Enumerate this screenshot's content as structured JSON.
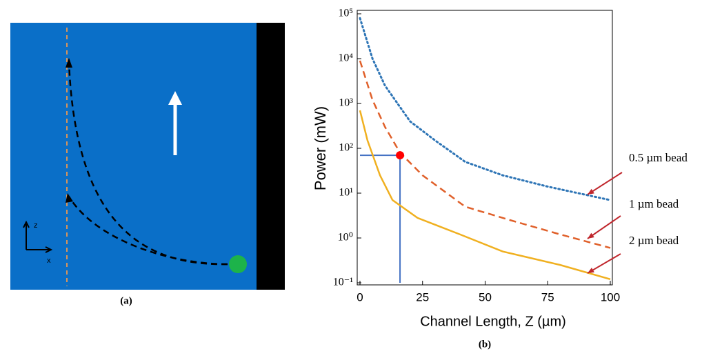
{
  "panel_a": {
    "label": "(a)",
    "axis_z": "z",
    "axis_x": "x"
  },
  "chart_data": {
    "type": "line",
    "panel_label": "(b)",
    "ylabel": "Power (mW)",
    "xlabel": "Channel Length,  Z (µm)",
    "xlim": [
      0,
      100
    ],
    "xticks": [
      0,
      25,
      50,
      75,
      100
    ],
    "ylim": [
      0.1,
      100000
    ],
    "log_y": true,
    "yticks": [
      {
        "value": 100000,
        "label": "10⁵"
      },
      {
        "value": 10000,
        "label": "10⁴"
      },
      {
        "value": 1000,
        "label": "10³"
      },
      {
        "value": 100,
        "label": "10²"
      },
      {
        "value": 10,
        "label": "10¹"
      },
      {
        "value": 1,
        "label": "10⁰"
      },
      {
        "value": 0.1,
        "label": "10⁻¹"
      }
    ],
    "series": [
      {
        "name": "0.5 µm bead",
        "color": "#2e75b6",
        "style": "dotted",
        "x": [
          0,
          5,
          10,
          20,
          30,
          42,
          57,
          75,
          100
        ],
        "values": [
          80000,
          10000,
          2500,
          400,
          150,
          50,
          25,
          14,
          7
        ]
      },
      {
        "name": "1 µm bead",
        "color": "#e0602a",
        "style": "dashed",
        "x": [
          0,
          5,
          10,
          16,
          25,
          42,
          60,
          80,
          100
        ],
        "values": [
          9000,
          1200,
          300,
          80,
          25,
          5,
          2.5,
          1.2,
          0.6
        ]
      },
      {
        "name": "2 µm bead",
        "color": "#f0b020",
        "style": "solid",
        "x": [
          0,
          3,
          8,
          13,
          23,
          40,
          57,
          80,
          100
        ],
        "values": [
          700,
          150,
          25,
          7,
          2.8,
          1.2,
          0.5,
          0.25,
          0.12
        ]
      }
    ],
    "highlight": {
      "x": 16,
      "y": 70,
      "color": "#ff0000",
      "guide_color": "#4472c4"
    }
  }
}
